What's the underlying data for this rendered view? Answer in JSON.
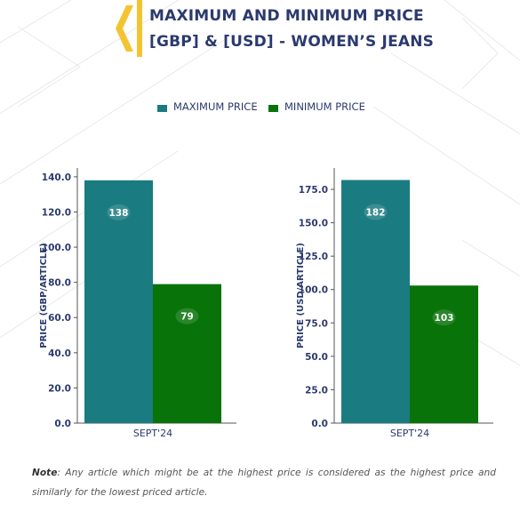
{
  "title": {
    "line1": "MAXIMUM AND MINIMUM PRICE",
    "line2": "[GBP] & [USD] - WOMEN’S JEANS"
  },
  "legend": [
    {
      "label": "MAXIMUM PRICE",
      "color": "#1a7b80"
    },
    {
      "label": "MINIMUM PRICE",
      "color": "#087309"
    }
  ],
  "colors": {
    "max": "#1a7b80",
    "min": "#087309",
    "title": "#2b3a6e",
    "accent": "#f4c430"
  },
  "chart_data": [
    {
      "type": "bar",
      "categories": [
        "SEPT'24"
      ],
      "series": [
        {
          "name": "MAXIMUM PRICE",
          "values": [
            138
          ]
        },
        {
          "name": "MINIMUM PRICE",
          "values": [
            79
          ]
        }
      ],
      "ylabel": "PRICE (GBP/ARTICLE)",
      "xlabel": "",
      "ylim": [
        0,
        145
      ],
      "yticks": [
        "0.0",
        "20.0",
        "40.0",
        "60.0",
        "80.0",
        "100.0",
        "120.0",
        "140.0"
      ],
      "ytick_values": [
        0,
        20,
        40,
        60,
        80,
        100,
        120,
        140
      ],
      "grid": false
    },
    {
      "type": "bar",
      "categories": [
        "SEPT'24"
      ],
      "series": [
        {
          "name": "MAXIMUM PRICE",
          "values": [
            182
          ]
        },
        {
          "name": "MINIMUM PRICE",
          "values": [
            103
          ]
        }
      ],
      "ylabel": "PRICE (USD/ARTICLE)",
      "xlabel": "",
      "ylim": [
        0,
        191
      ],
      "yticks": [
        "0.0",
        "25.0",
        "50.0",
        "75.0",
        "100.0",
        "125.0",
        "150.0",
        "175.0"
      ],
      "ytick_values": [
        0,
        25,
        50,
        75,
        100,
        125,
        150,
        175
      ],
      "grid": false
    }
  ],
  "note": {
    "label": "Note",
    "text": ": Any article which might be at the highest price is considered as the highest price and similarly for the lowest priced article."
  }
}
